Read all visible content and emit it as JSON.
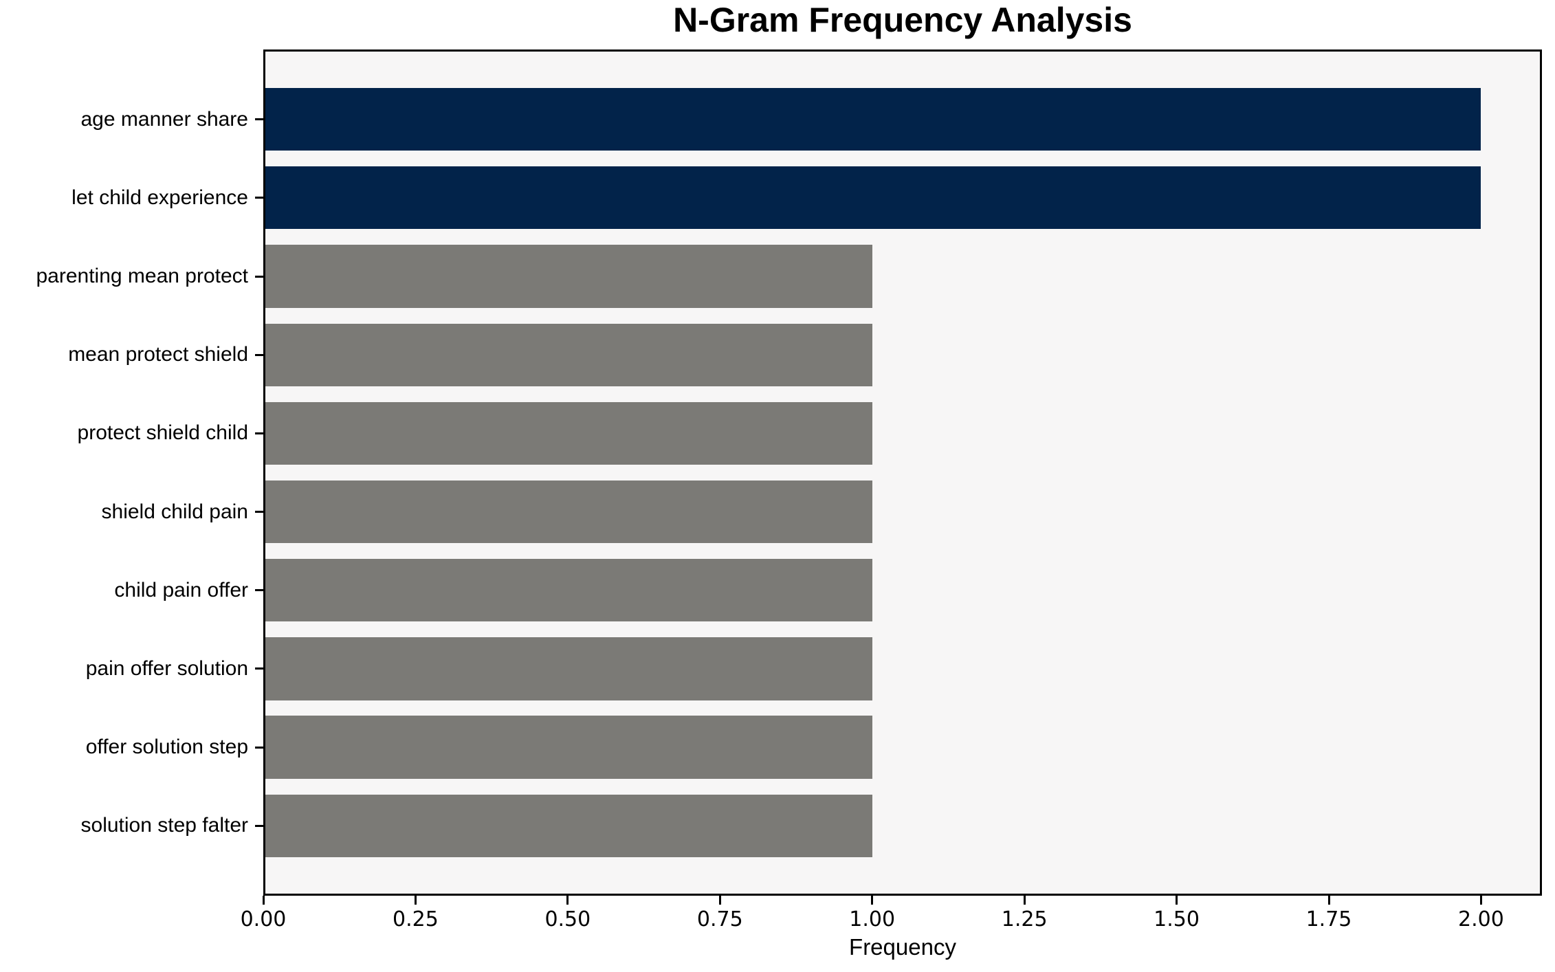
{
  "title": "N-Gram Frequency Analysis",
  "chart_data": {
    "type": "bar",
    "orientation": "horizontal",
    "title": "N-Gram Frequency Analysis",
    "xlabel": "Frequency",
    "ylabel": "",
    "categories": [
      "age manner share",
      "let child experience",
      "parenting mean protect",
      "mean protect shield",
      "protect shield child",
      "shield child pain",
      "child pain offer",
      "pain offer solution",
      "offer solution step",
      "solution step falter"
    ],
    "values": [
      2,
      2,
      1,
      1,
      1,
      1,
      1,
      1,
      1,
      1
    ],
    "bar_colors": [
      "#02234a",
      "#02234a",
      "#7b7a76",
      "#7b7a76",
      "#7b7a76",
      "#7b7a76",
      "#7b7a76",
      "#7b7a76",
      "#7b7a76",
      "#7b7a76"
    ],
    "xlim": [
      0,
      2.1
    ],
    "xticks": [
      0,
      0.25,
      0.5,
      0.75,
      1.0,
      1.25,
      1.5,
      1.75,
      2.0
    ],
    "xtick_labels": [
      "0.00",
      "0.25",
      "0.50",
      "0.75",
      "1.00",
      "1.25",
      "1.50",
      "1.75",
      "2.00"
    ],
    "grid": false,
    "legend": null,
    "colors": {
      "highlight_bar": "#02234a",
      "default_bar": "#7b7a76",
      "plot_background": "#f7f6f6",
      "figure_background": "#ffffff",
      "axis": "#000000",
      "text": "#000000"
    }
  }
}
